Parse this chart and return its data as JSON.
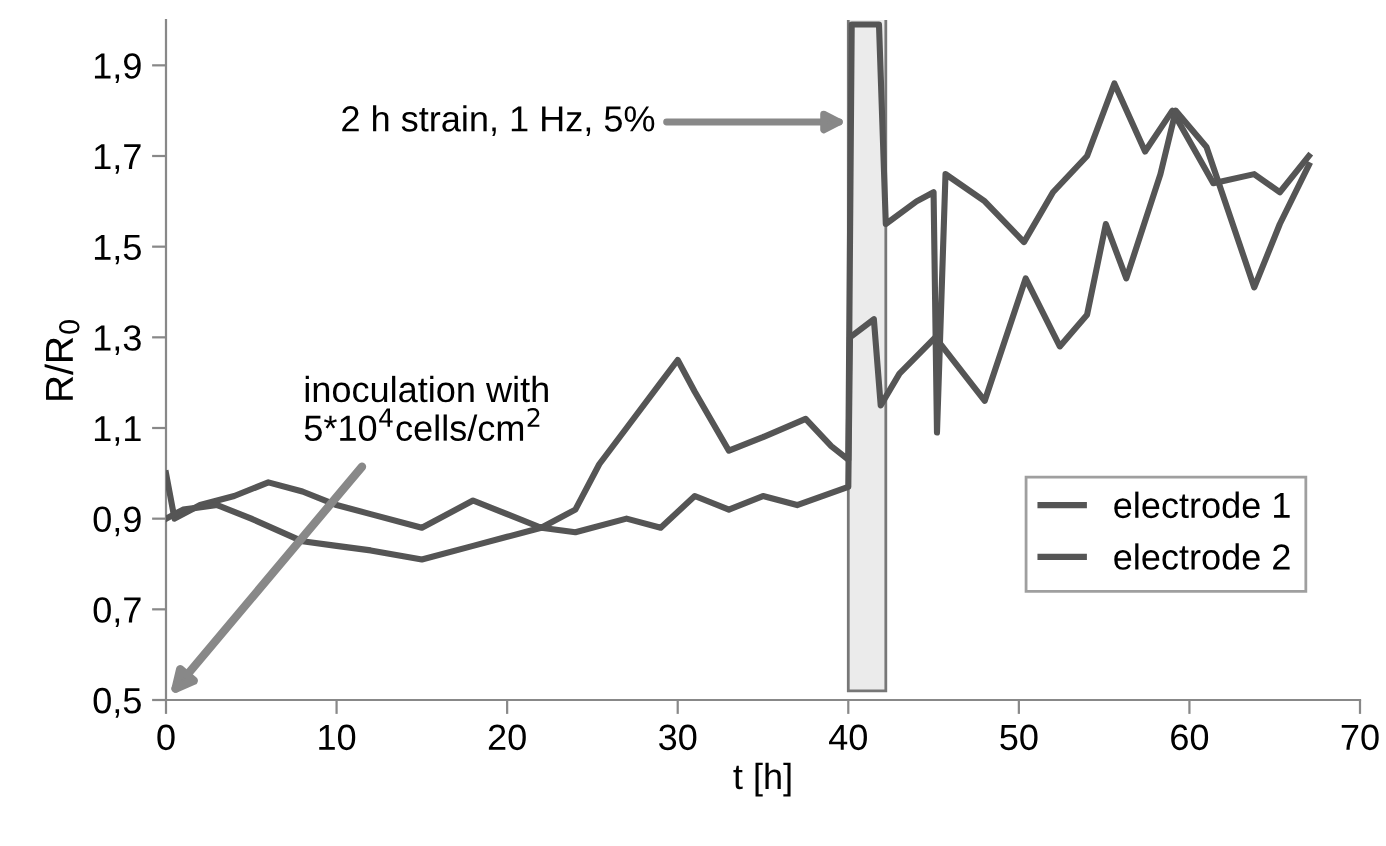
{
  "chart_data": {
    "type": "line",
    "xlabel": "t [h]",
    "ylabel": "R/R$_{0}$",
    "xlim": [
      0,
      70
    ],
    "xticks": [
      0,
      10,
      20,
      30,
      40,
      50,
      60,
      70
    ],
    "ylim": [
      0.5,
      2.0
    ],
    "yticks": [
      {
        "value": 0.5,
        "label": "0,5"
      },
      {
        "value": 0.7,
        "label": "0,7"
      },
      {
        "value": 0.9,
        "label": "0,9"
      },
      {
        "value": 1.1,
        "label": "1,1"
      },
      {
        "value": 1.3,
        "label": "1,3"
      },
      {
        "value": 1.5,
        "label": "1,5"
      },
      {
        "value": 1.7,
        "label": "1,7"
      },
      {
        "value": 1.9,
        "label": "1,9"
      }
    ],
    "grid": false,
    "legend": "lower right",
    "marker": "none",
    "line_style": "solid",
    "series": [
      {
        "name": "electrode 1",
        "color": "#555555",
        "x": [
          0,
          0.5,
          2,
          4,
          6,
          8,
          10,
          12,
          15,
          18,
          20,
          22,
          24,
          25.4,
          27,
          29,
          30,
          31,
          33,
          35,
          37.5,
          39,
          40,
          40.2,
          41.8,
          42.2,
          44,
          45,
          45.2,
          45.7,
          48,
          50.3,
          52,
          54,
          55.6,
          57.4,
          59,
          61.4,
          63.8,
          65.3,
          67
        ],
        "values": [
          1.0,
          0.9,
          0.93,
          0.95,
          0.98,
          0.96,
          0.93,
          0.91,
          0.88,
          0.94,
          0.91,
          0.88,
          0.92,
          1.02,
          1.1,
          1.2,
          1.25,
          1.18,
          1.05,
          1.08,
          1.12,
          1.06,
          1.03,
          1.99,
          1.99,
          1.55,
          1.6,
          1.62,
          1.09,
          1.66,
          1.6,
          1.51,
          1.62,
          1.7,
          1.86,
          1.71,
          1.8,
          1.64,
          1.66,
          1.62,
          1.7
        ]
      },
      {
        "name": "electrode 2",
        "color": "#555555",
        "x": [
          0,
          1,
          3,
          5,
          8,
          10,
          12,
          15,
          18,
          20,
          22,
          24,
          27,
          29,
          31,
          33,
          35,
          37,
          40,
          40.1,
          41.5,
          41.9,
          43,
          45.1,
          48,
          50.4,
          52.4,
          54,
          55.1,
          56.3,
          58.3,
          59.2,
          61,
          63.8,
          65.3,
          67
        ],
        "values": [
          0.9,
          0.92,
          0.93,
          0.9,
          0.85,
          0.84,
          0.83,
          0.81,
          0.84,
          0.86,
          0.88,
          0.87,
          0.9,
          0.88,
          0.95,
          0.92,
          0.95,
          0.93,
          0.97,
          1.3,
          1.34,
          1.15,
          1.22,
          1.3,
          1.16,
          1.43,
          1.28,
          1.35,
          1.55,
          1.43,
          1.66,
          1.8,
          1.72,
          1.41,
          1.55,
          1.68
        ]
      }
    ],
    "bands": [
      {
        "axis": "x",
        "from": 40,
        "to": 42.2,
        "color": "#777777"
      }
    ],
    "annotations": [
      "2 h strain, 1 Hz, 5%",
      "inoculation with\n5*10$^{4}$cells/cm$^{2}$"
    ]
  }
}
